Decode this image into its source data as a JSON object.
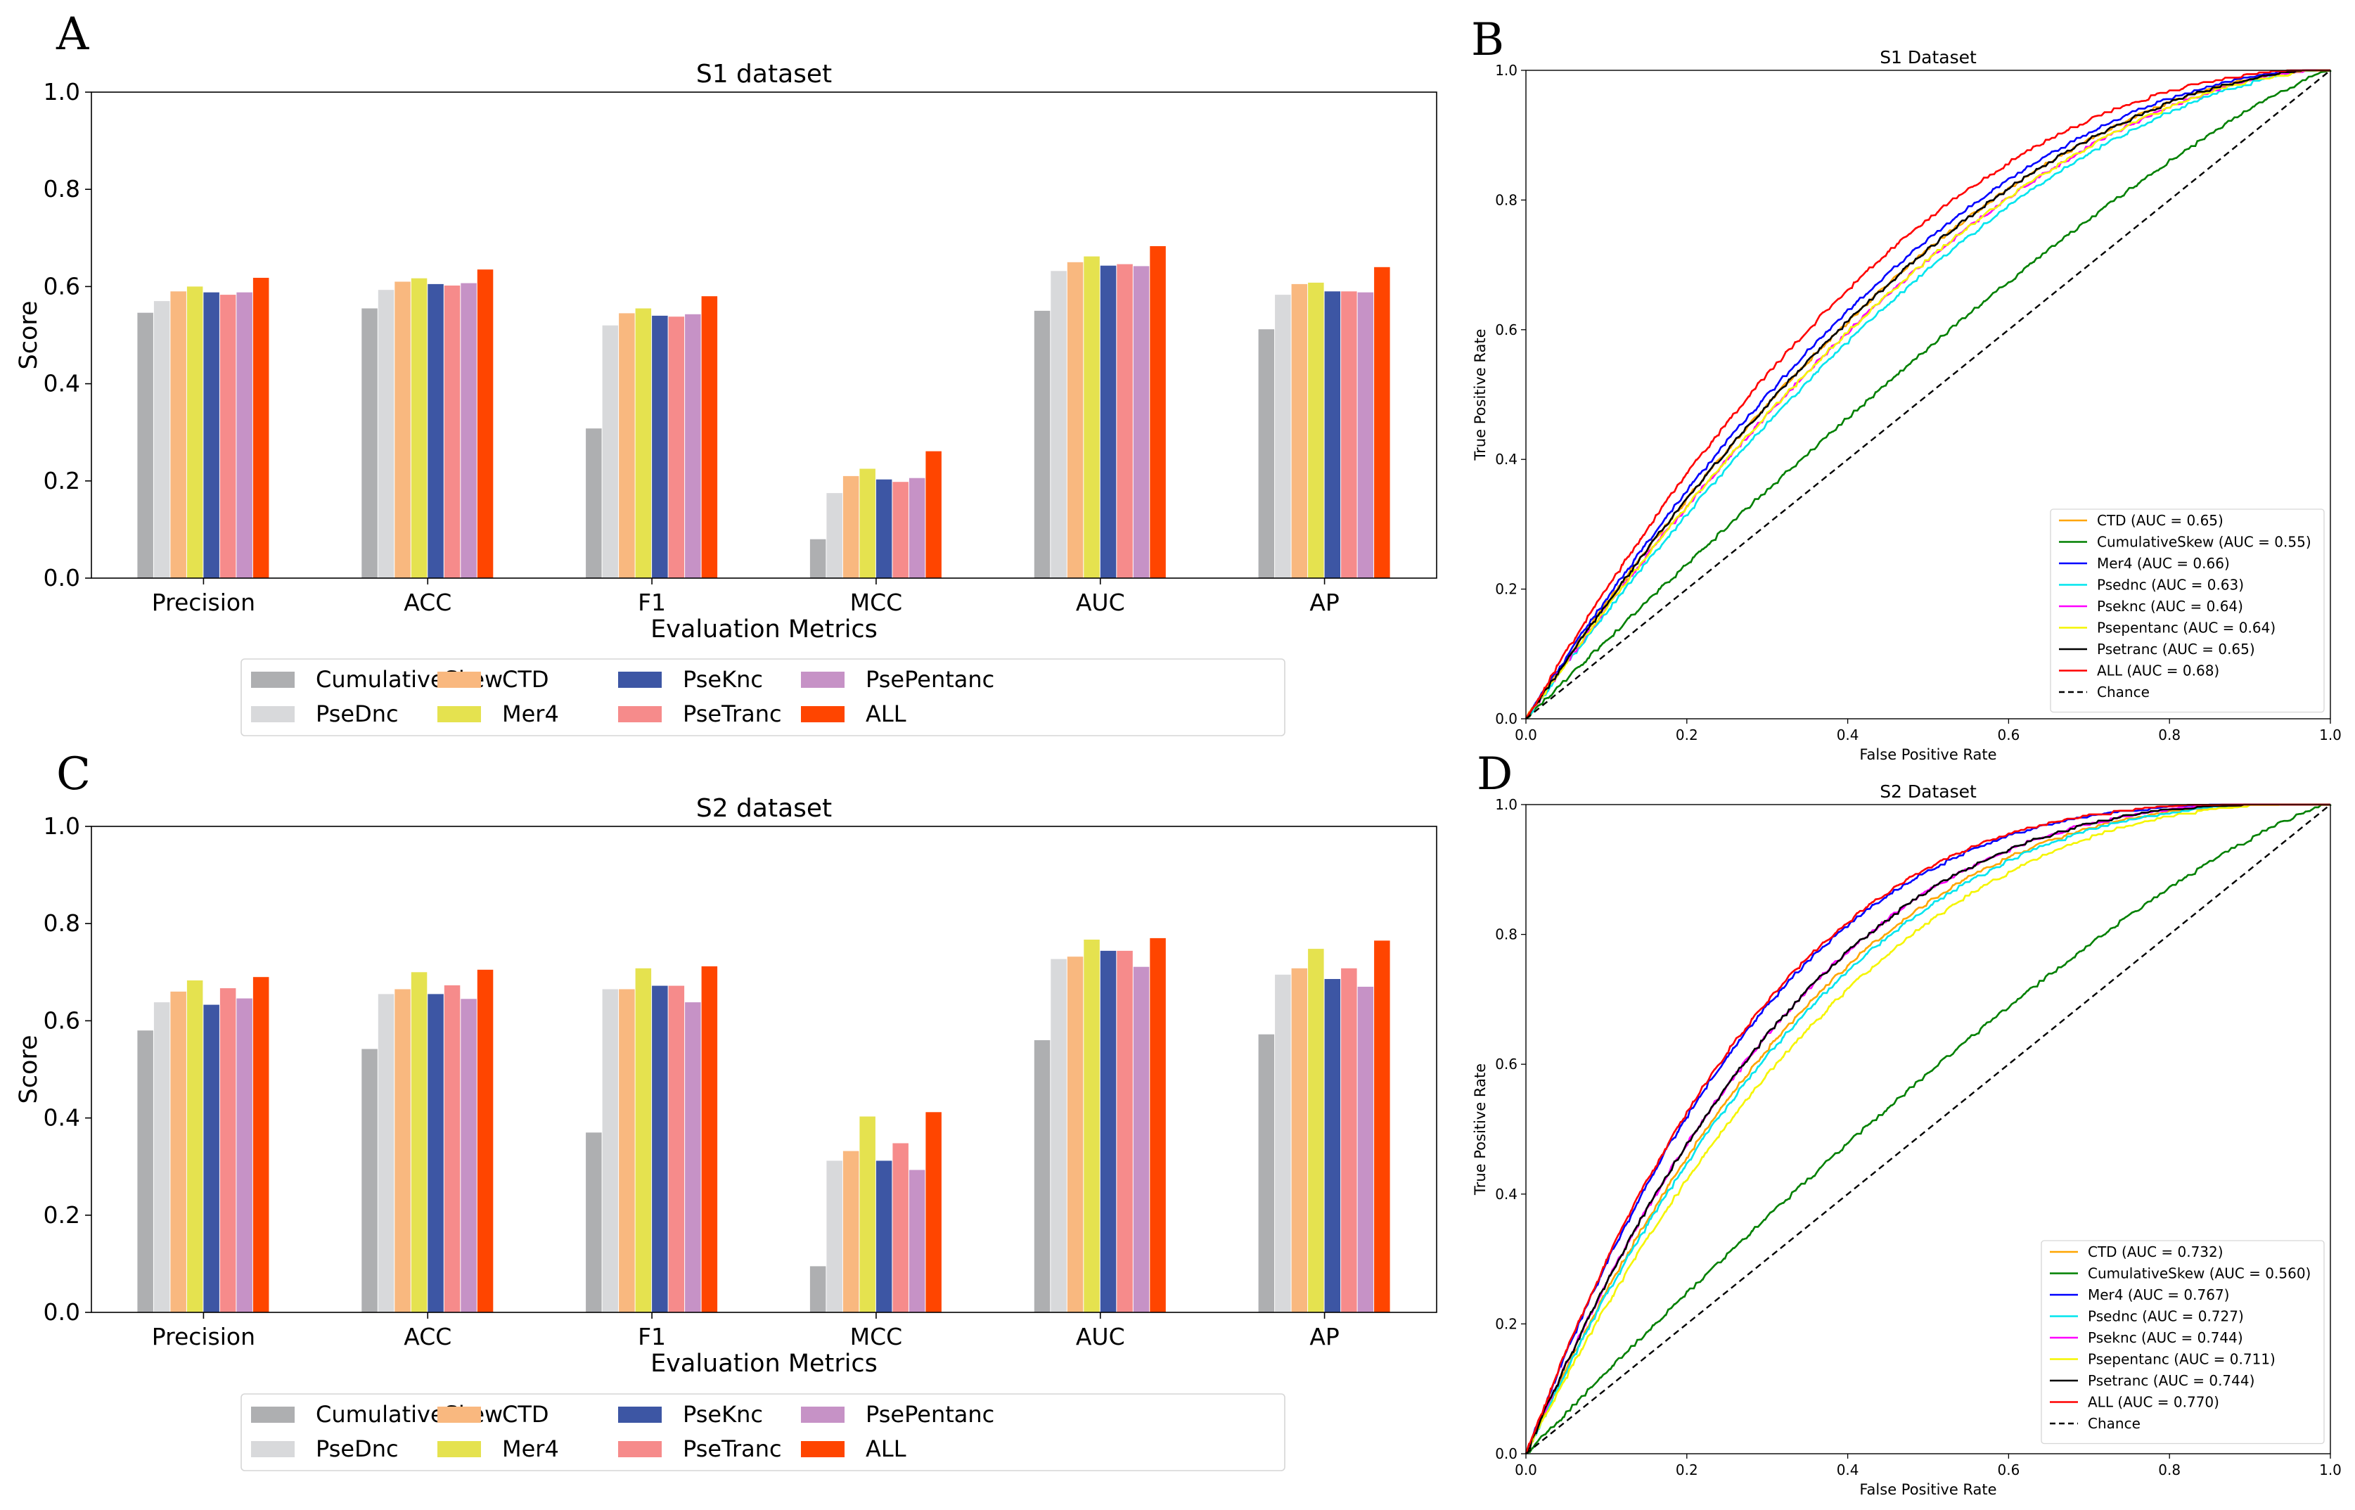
{
  "figure": {
    "panel_labels": [
      "A",
      "B",
      "C",
      "D"
    ]
  },
  "chart_data": [
    {
      "panel": "A",
      "type": "bar",
      "title": "S1 dataset",
      "xlabel": "Evaluation Metrics",
      "ylabel": "Score",
      "ylim": [
        0,
        1
      ],
      "yticks": [
        "0.0",
        "0.2",
        "0.4",
        "0.6",
        "0.8",
        "1.0"
      ],
      "categories": [
        "Precision",
        "ACC",
        "F1",
        "MCC",
        "AUC",
        "AP"
      ],
      "legend_position": "lower-center",
      "series": [
        {
          "name": "CumulativeSkew",
          "color": "#aeafb1",
          "values": [
            0.546,
            0.555,
            0.308,
            0.08,
            0.55,
            0.512
          ]
        },
        {
          "name": "PseDnc",
          "color": "#d8d9db",
          "values": [
            0.57,
            0.593,
            0.52,
            0.175,
            0.632,
            0.583
          ]
        },
        {
          "name": "CTD",
          "color": "#f9b87f",
          "values": [
            0.59,
            0.61,
            0.545,
            0.21,
            0.65,
            0.605
          ]
        },
        {
          "name": "Mer4",
          "color": "#e5e24f",
          "values": [
            0.6,
            0.617,
            0.555,
            0.225,
            0.662,
            0.608
          ]
        },
        {
          "name": "PseKnc",
          "color": "#3d56a4",
          "values": [
            0.588,
            0.605,
            0.54,
            0.203,
            0.643,
            0.59
          ]
        },
        {
          "name": "PseTranc",
          "color": "#f68b8b",
          "values": [
            0.583,
            0.602,
            0.538,
            0.198,
            0.646,
            0.59
          ]
        },
        {
          "name": "PsePentanc",
          "color": "#c692c6",
          "values": [
            0.588,
            0.607,
            0.543,
            0.206,
            0.642,
            0.588
          ]
        },
        {
          "name": "ALL",
          "color": "#ff4500",
          "values": [
            0.618,
            0.635,
            0.58,
            0.261,
            0.683,
            0.64
          ]
        }
      ]
    },
    {
      "panel": "B",
      "type": "line",
      "title": "S1 Dataset",
      "xlabel": "False Positive Rate",
      "ylabel": "True Positive Rate",
      "xlim": [
        0,
        1
      ],
      "ylim": [
        0,
        1
      ],
      "xticks": [
        "0.0",
        "0.2",
        "0.4",
        "0.6",
        "0.8",
        "1.0"
      ],
      "yticks": [
        "0.0",
        "0.2",
        "0.4",
        "0.6",
        "0.8",
        "1.0"
      ],
      "legend_position": "lower-right",
      "series": [
        {
          "name": "CTD (AUC = 0.65)",
          "color": "#ffa500",
          "auc": 0.65
        },
        {
          "name": "CumulativeSkew (AUC = 0.55)",
          "color": "#008000",
          "auc": 0.55
        },
        {
          "name": "Mer4 (AUC = 0.66)",
          "color": "#0000ff",
          "auc": 0.66
        },
        {
          "name": "Psednc (AUC = 0.63)",
          "color": "#00e5ee",
          "auc": 0.63
        },
        {
          "name": "Pseknc (AUC = 0.64)",
          "color": "#ff00ff",
          "auc": 0.64
        },
        {
          "name": "Psepentanc (AUC = 0.64)",
          "color": "#f5f500",
          "auc": 0.64
        },
        {
          "name": "Psetranc (AUC = 0.65)",
          "color": "#000000",
          "auc": 0.65
        },
        {
          "name": "ALL (AUC = 0.68)",
          "color": "#ff0000",
          "auc": 0.68
        },
        {
          "name": "Chance",
          "color": "#000000",
          "dashed": true
        }
      ]
    },
    {
      "panel": "C",
      "type": "bar",
      "title": "S2 dataset",
      "xlabel": "Evaluation Metrics",
      "ylabel": "Score",
      "ylim": [
        0,
        1
      ],
      "yticks": [
        "0.0",
        "0.2",
        "0.4",
        "0.6",
        "0.8",
        "1.0"
      ],
      "categories": [
        "Precision",
        "ACC",
        "F1",
        "MCC",
        "AUC",
        "AP"
      ],
      "legend_position": "lower-center",
      "series": [
        {
          "name": "CumulativeSkew",
          "color": "#aeafb1",
          "values": [
            0.58,
            0.542,
            0.37,
            0.095,
            0.56,
            0.572
          ]
        },
        {
          "name": "PseDnc",
          "color": "#d8d9db",
          "values": [
            0.638,
            0.655,
            0.665,
            0.312,
            0.727,
            0.695
          ]
        },
        {
          "name": "CTD",
          "color": "#f9b87f",
          "values": [
            0.66,
            0.665,
            0.665,
            0.332,
            0.732,
            0.708
          ]
        },
        {
          "name": "Mer4",
          "color": "#e5e24f",
          "values": [
            0.683,
            0.7,
            0.708,
            0.403,
            0.767,
            0.748
          ]
        },
        {
          "name": "PseKnc",
          "color": "#3d56a4",
          "values": [
            0.633,
            0.655,
            0.672,
            0.312,
            0.744,
            0.686
          ]
        },
        {
          "name": "PseTranc",
          "color": "#f68b8b",
          "values": [
            0.667,
            0.673,
            0.672,
            0.348,
            0.744,
            0.708
          ]
        },
        {
          "name": "PsePentanc",
          "color": "#c692c6",
          "values": [
            0.646,
            0.645,
            0.638,
            0.293,
            0.711,
            0.67
          ]
        },
        {
          "name": "ALL",
          "color": "#ff4500",
          "values": [
            0.69,
            0.705,
            0.712,
            0.412,
            0.77,
            0.765
          ]
        }
      ]
    },
    {
      "panel": "D",
      "type": "line",
      "title": "S2 Dataset",
      "xlabel": "False Positive Rate",
      "ylabel": "True Positive Rate",
      "xlim": [
        0,
        1
      ],
      "ylim": [
        0,
        1
      ],
      "xticks": [
        "0.0",
        "0.2",
        "0.4",
        "0.6",
        "0.8",
        "1.0"
      ],
      "yticks": [
        "0.0",
        "0.2",
        "0.4",
        "0.6",
        "0.8",
        "1.0"
      ],
      "legend_position": "lower-right",
      "series": [
        {
          "name": "CTD (AUC = 0.732)",
          "color": "#ffa500",
          "auc": 0.732
        },
        {
          "name": "CumulativeSkew (AUC = 0.560)",
          "color": "#008000",
          "auc": 0.56
        },
        {
          "name": "Mer4 (AUC = 0.767)",
          "color": "#0000ff",
          "auc": 0.767
        },
        {
          "name": "Psednc (AUC = 0.727)",
          "color": "#00e5ee",
          "auc": 0.727
        },
        {
          "name": "Pseknc (AUC = 0.744)",
          "color": "#ff00ff",
          "auc": 0.744
        },
        {
          "name": "Psepentanc (AUC = 0.711)",
          "color": "#f5f500",
          "auc": 0.711
        },
        {
          "name": "Psetranc (AUC = 0.744)",
          "color": "#000000",
          "auc": 0.744
        },
        {
          "name": "ALL (AUC = 0.770)",
          "color": "#ff0000",
          "auc": 0.77
        },
        {
          "name": "Chance",
          "color": "#000000",
          "dashed": true
        }
      ]
    }
  ]
}
